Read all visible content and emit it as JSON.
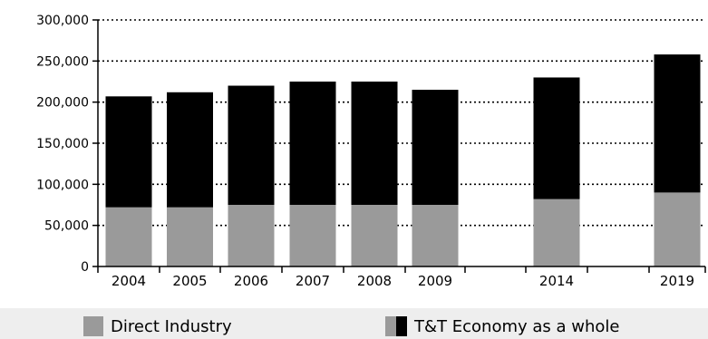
{
  "chart_data": {
    "type": "bar",
    "stacked": true,
    "categories": [
      "2004",
      "2005",
      "2006",
      "2007",
      "2008",
      "2009",
      "2014",
      "2019"
    ],
    "series": [
      {
        "name": "Direct Industry",
        "values": [
          72000,
          72000,
          75000,
          75000,
          75000,
          75000,
          82000,
          90000
        ],
        "color": "#9a9a9a"
      },
      {
        "name": "T&T Economy as a whole",
        "values": [
          135000,
          140000,
          145000,
          150000,
          150000,
          140000,
          148000,
          168000
        ],
        "color": "#000000"
      }
    ],
    "y_ticks": [
      "0",
      "50,000",
      "100,000",
      "150,000",
      "200,000",
      "250,000",
      "300,000"
    ],
    "ylim": [
      0,
      300000
    ],
    "grid": "horizontal-dotted",
    "legend_position": "bottom"
  }
}
